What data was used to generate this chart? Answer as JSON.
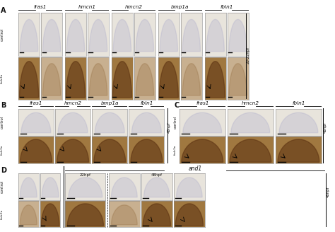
{
  "panel_A_label": "A",
  "panel_B_label": "B",
  "panel_C_label": "C",
  "panel_D_label": "D",
  "gene_labels_A": [
    "fras1",
    "hmcn1",
    "hmcn2",
    "bmp1a",
    "fbln1"
  ],
  "gene_labels_B": [
    "fras1",
    "hmcn2",
    "bmp1a",
    "fbln1"
  ],
  "gene_labels_C": [
    "fras1",
    "hmcn2",
    "fbln1"
  ],
  "gene_label_D": "and1",
  "row_label_control": "control",
  "row_label_mutant": "fndc3a",
  "time_label_A": "20-22hpf",
  "time_label_B": "48hpf",
  "time_label_C": "48hpf",
  "time_label_D_left": "22hpf",
  "time_label_D_right": "48hpf",
  "fig_bg": "#ffffff",
  "panel_bg_light": "#e8e4dc",
  "panel_bg_dark": "#a07840",
  "panel_bg_mid": "#c8b090",
  "panel_outline": "#888888",
  "text_color": "#111111",
  "line_color": "#333333"
}
